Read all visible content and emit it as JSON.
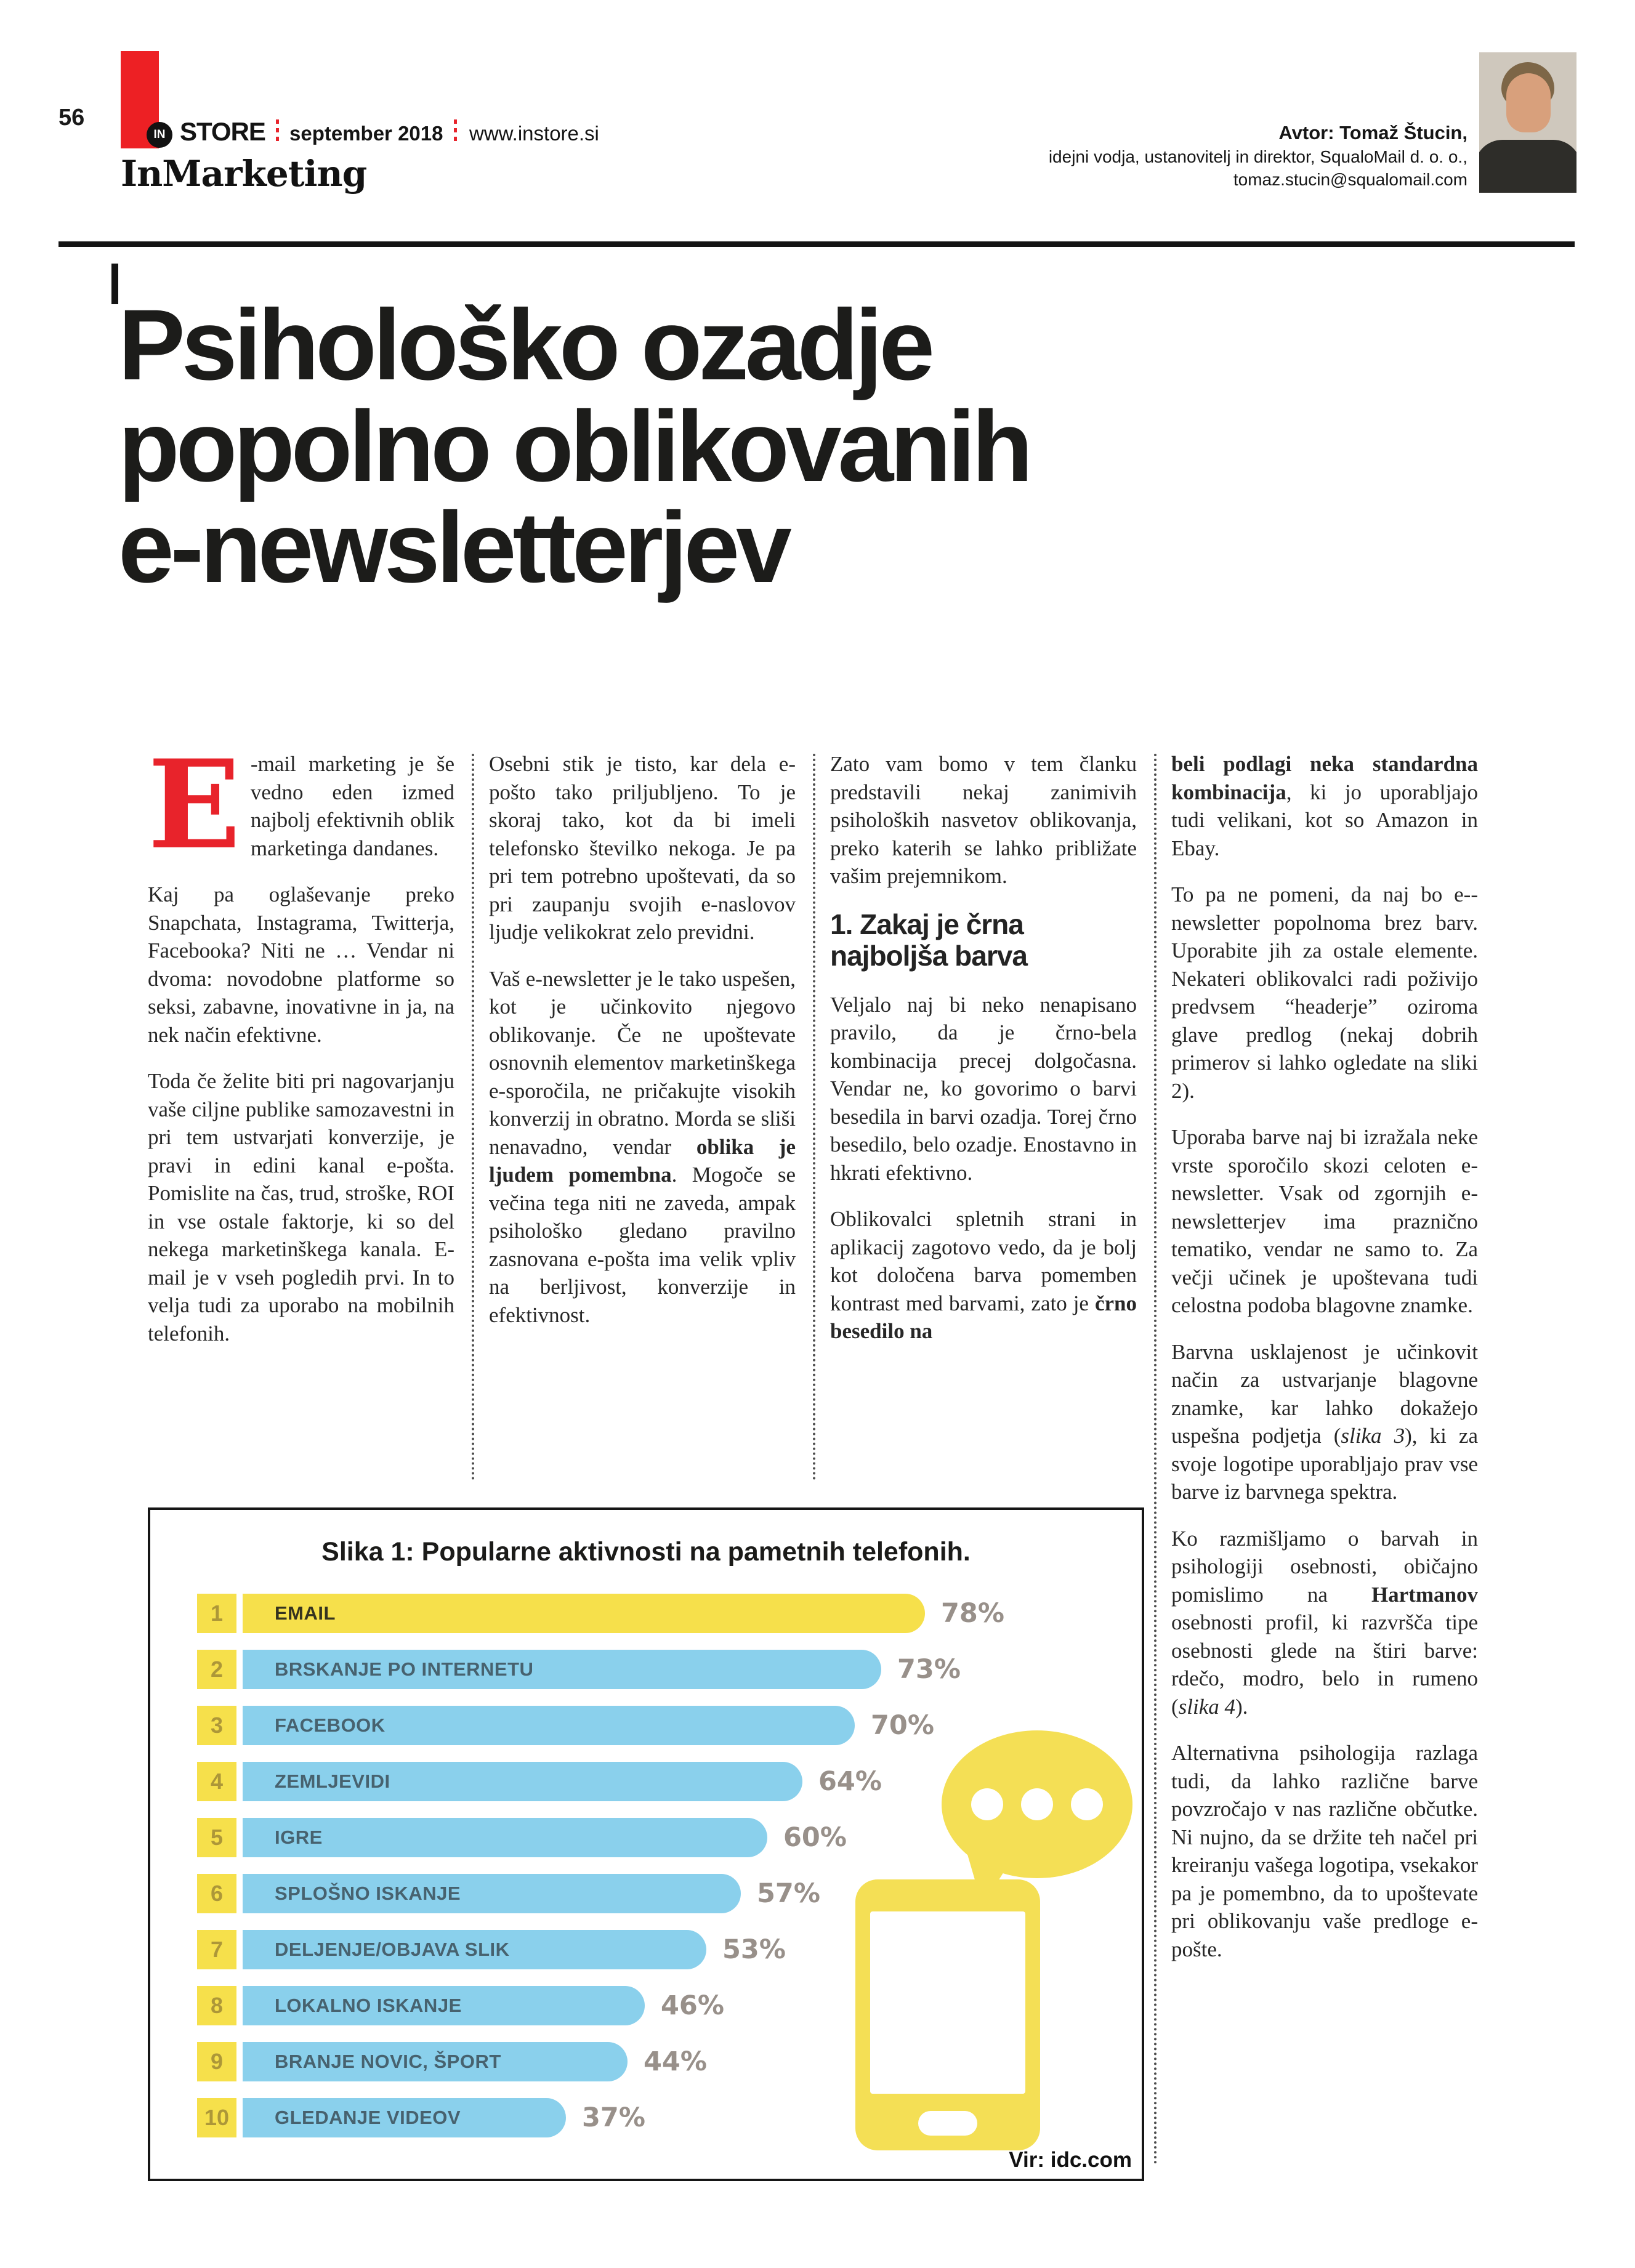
{
  "header": {
    "page_number": "56",
    "logo_in": "IN",
    "logo_store": "STORE",
    "issue": "september 2018",
    "website": "www.instore.si",
    "section": "InMarketing",
    "author_name": "Avtor: Tomaž Štucin,",
    "author_role": "idejni vodja, ustanovitelj in direktor, SqualoMail d. o. o.,",
    "author_email": "tomaz.stucin@squalomail.com"
  },
  "title": {
    "lines": [
      "Psihološko ozadje",
      "popolno oblikovanih",
      "e-newsletterjev"
    ]
  },
  "article": {
    "columns": [
      {
        "blocks": [
          {
            "type": "p",
            "drop_cap": "E",
            "segments": [
              {
                "t": "-mail marketing je še vedno eden izmed najbolj efektivnih oblik marketinga dandanes.",
                "s": ""
              }
            ]
          },
          {
            "type": "p",
            "segments": [
              {
                "t": "Kaj pa oglaševanje preko Snapchata, Instagrama, Twitterja, Facebooka? Niti ne … Vendar ni dvoma: novodobne platforme so seksi, zabavne, inovativne in ja, na nek način efektivne.",
                "s": ""
              }
            ]
          },
          {
            "type": "p",
            "segments": [
              {
                "t": "Toda če želite biti pri nagovarjanju vaše ciljne publike samozavestni in pri tem ustvarjati konverzije, je pravi in edini kanal e-pošta. Pomislite na čas, trud, stroške, ROI in vse ostale faktorje, ki so del nekega marketinškega kanala. E-mail je v vseh pogledih prvi. In to velja tudi za uporabo na mobilnih telefonih.",
                "s": ""
              }
            ]
          }
        ]
      },
      {
        "blocks": [
          {
            "type": "p",
            "segments": [
              {
                "t": "Osebni stik je tisto, kar dela e-pošto tako priljubljeno. To je skoraj tako, kot da bi imeli telefonsko številko nekoga. Je pa pri tem potrebno upoštevati, da so pri zaupanju svojih e-naslovov ljudje velikokrat zelo previdni.",
                "s": ""
              }
            ]
          },
          {
            "type": "p",
            "segments": [
              {
                "t": "Vaš e-newsletter je le tako uspešen, kot je učinkovito njegovo oblikovanje. Če ne upoštevate osnovnih elementov marketinškega e-sporočila, ne pričakujte visokih konverzij in obratno. Morda se sliši nenavadno, vendar ",
                "s": ""
              },
              {
                "t": "oblika je ljudem pomembna",
                "s": "b"
              },
              {
                "t": ". Mogoče se večina tega niti ne zaveda, ampak psihološko gledano pravilno zasnovana e-pošta ima velik vpliv na berljivost, konverzije in efektivnost.",
                "s": ""
              }
            ]
          }
        ]
      },
      {
        "blocks": [
          {
            "type": "p",
            "segments": [
              {
                "t": "Zato vam bomo v tem članku predstavili nekaj zanimivih psiholoških nasvetov oblikovanja, preko katerih se lahko približate vašim prejemnikom.",
                "s": ""
              }
            ]
          },
          {
            "type": "h",
            "text": "1. Zakaj je črna najboljša barva"
          },
          {
            "type": "p",
            "segments": [
              {
                "t": "Veljalo naj bi neko nenapisano pravilo, da je črno-bela kombinacija precej dolgočasna. Vendar ne, ko govorimo o barvi besedila in barvi ozadja. Torej črno besedilo, belo ozadje. Enostavno in hkrati efektivno.",
                "s": ""
              }
            ]
          },
          {
            "type": "p",
            "segments": [
              {
                "t": "Oblikovalci spletnih strani in aplikacij zagotovo vedo, da je bolj kot določena barva pomemben kontrast med barvami, zato je ",
                "s": ""
              },
              {
                "t": "črno besedilo na",
                "s": "b"
              }
            ]
          }
        ]
      },
      {
        "blocks": [
          {
            "type": "p",
            "segments": [
              {
                "t": "beli podlagi neka standardna kombinacija",
                "s": "b"
              },
              {
                "t": ", ki jo uporabljajo tudi velikani, kot so Amazon in Ebay.",
                "s": ""
              }
            ]
          },
          {
            "type": "p",
            "segments": [
              {
                "t": "To pa ne pomeni, da naj bo e--newsletter popolnoma brez barv. Uporabite jih za ostale elemente. Nekateri oblikovalci radi poživijo predvsem “headerje” oziroma glave predlog (nekaj dobrih primerov si lahko ogledate na sliki 2).",
                "s": ""
              }
            ]
          },
          {
            "type": "p",
            "segments": [
              {
                "t": "Uporaba barve naj bi izražala neke vrste sporočilo skozi celoten e-newsletter. Vsak od zgornjih e-newsletterjev ima praznično tematiko, vendar ne samo to. Za večji učinek je upoštevana tudi celostna podoba blagovne znamke.",
                "s": ""
              }
            ]
          },
          {
            "type": "p",
            "segments": [
              {
                "t": "Barvna usklajenost je učinkovit način za ustvarjanje blagovne znamke, kar lahko dokažejo uspešna podjetja (",
                "s": ""
              },
              {
                "t": "slika 3",
                "s": "i"
              },
              {
                "t": "), ki za svoje logotipe uporabljajo prav vse barve iz barvnega spektra.",
                "s": ""
              }
            ]
          },
          {
            "type": "p",
            "segments": [
              {
                "t": "Ko razmišljamo o barvah in psihologiji osebnosti, običajno pomislimo na ",
                "s": ""
              },
              {
                "t": "Hartmanov",
                "s": "b"
              },
              {
                "t": " osebnosti profil, ki razvršča tipe osebnosti glede na štiri barve: rdečo, modro, belo in rumeno (",
                "s": ""
              },
              {
                "t": "slika 4",
                "s": "i"
              },
              {
                "t": ").",
                "s": ""
              }
            ]
          },
          {
            "type": "p",
            "segments": [
              {
                "t": "Alternativna psihologija razlaga tudi, da lahko različne barve povzročajo v nas različne občutke. Ni nujno, da se držite teh načel pri kreiranju vašega logotipa, vsekakor pa je pomembno, da to upoštevate pri oblikovanju vaše predloge e-pošte.",
                "s": ""
              }
            ]
          }
        ]
      }
    ]
  },
  "chart": {
    "caption": "Slika 1: Popularne aktivnosti na pametnih telefonih.",
    "source": "Vir: idc.com",
    "chart_data": {
      "type": "bar",
      "orientation": "horizontal",
      "categories": [
        "EMAIL",
        "BRSKANJE PO INTERNETU",
        "FACEBOOK",
        "ZEMLJEVIDI",
        "IGRE",
        "SPLOŠNO ISKANJE",
        "DELJENJE/OBJAVA SLIK",
        "LOKALNO ISKANJE",
        "BRANJE NOVIC, ŠPORT",
        "GLEDANJE VIDEOV"
      ],
      "values": [
        78,
        73,
        70,
        64,
        60,
        57,
        53,
        46,
        44,
        37
      ],
      "value_unit": "%",
      "title": "Slika 1: Popularne aktivnosti na pametnih telefonih.",
      "xlabel": "",
      "ylabel": "",
      "xlim": [
        0,
        100
      ],
      "grid": false,
      "legend": "none",
      "highlight_category": "EMAIL"
    },
    "colors": {
      "bar_highlight": "#f6e04b",
      "bar_default": "#8ad0ec",
      "badge_bg": "#f6e04b",
      "badge_number": "#ad9738",
      "label_on_blue": "#47626f",
      "label_on_yellow": "#35331f",
      "percent_text": "#98908a"
    }
  },
  "colors": {
    "accent_red": "#ed2024",
    "drop_cap_red": "#e8232b",
    "rule_black": "#141414"
  }
}
